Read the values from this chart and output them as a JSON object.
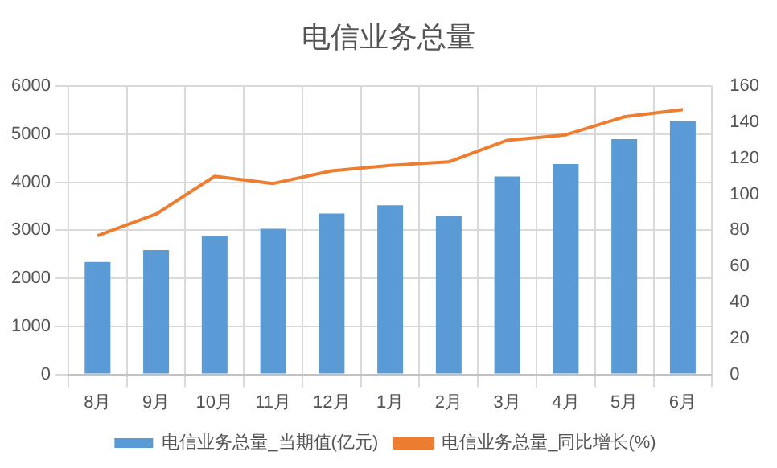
{
  "chart_data": {
    "type": "bar",
    "title": "电信业务总量",
    "categories": [
      "8月",
      "9月",
      "10月",
      "11月",
      "12月",
      "1月",
      "2月",
      "3月",
      "4月",
      "5月",
      "6月"
    ],
    "series": [
      {
        "name": "电信业务总量_当期值(亿元)",
        "color": "#5b9bd5",
        "values": [
          2340,
          2590,
          2880,
          3030,
          3350,
          3520,
          3300,
          4120,
          4380,
          4900,
          5270
        ]
      },
      {
        "name": "电信业务总量_同比增长(%)",
        "type": "line",
        "axis": "y2",
        "color": "#ed7d31",
        "values": [
          77,
          89,
          110,
          106,
          113,
          116,
          118,
          130,
          133,
          143,
          147
        ]
      }
    ],
    "ylim": [
      0,
      6000
    ],
    "yticks": [
      0,
      1000,
      2000,
      3000,
      4000,
      5000,
      6000
    ],
    "y2lim": [
      0,
      160
    ],
    "y2ticks": [
      0,
      20,
      40,
      60,
      80,
      100,
      120,
      140,
      160
    ],
    "grid": true,
    "legend": "bottom",
    "marker": "none"
  }
}
